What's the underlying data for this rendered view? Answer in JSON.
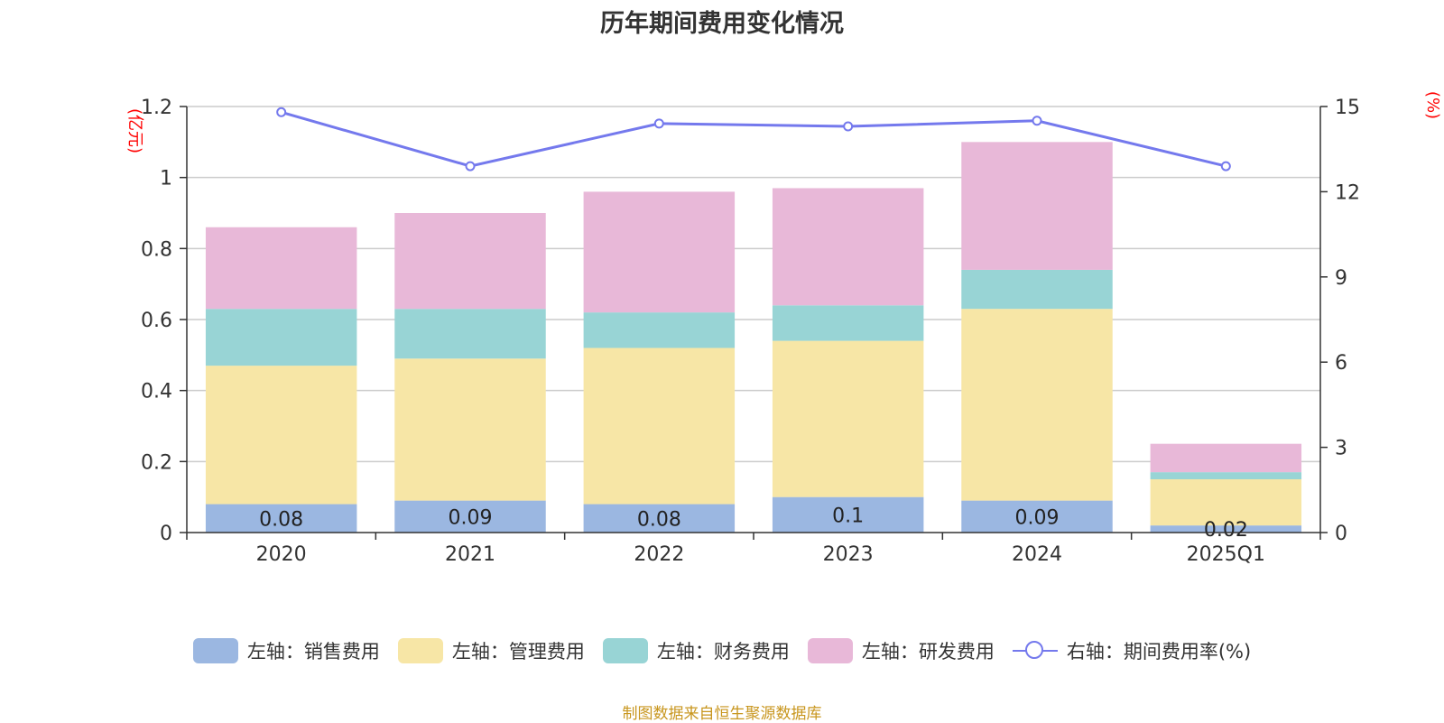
{
  "chart_data": {
    "type": "bar",
    "title": "历年期间费用变化情况",
    "categories": [
      "2020",
      "2021",
      "2022",
      "2023",
      "2024",
      "2025Q1"
    ],
    "series": [
      {
        "name": "左轴：销售费用",
        "axis": "left",
        "color": "#9bb7e1",
        "values": [
          0.08,
          0.09,
          0.08,
          0.1,
          0.09,
          0.02
        ],
        "labels": [
          "0.08",
          "0.09",
          "0.08",
          "0.1",
          "0.09",
          "0.02"
        ]
      },
      {
        "name": "左轴：管理费用",
        "axis": "left",
        "color": "#f7e6a6",
        "values": [
          0.39,
          0.4,
          0.44,
          0.44,
          0.54,
          0.13
        ]
      },
      {
        "name": "左轴：财务费用",
        "axis": "left",
        "color": "#98d4d5",
        "values": [
          0.16,
          0.14,
          0.1,
          0.1,
          0.11,
          0.02
        ]
      },
      {
        "name": "左轴：研发费用",
        "axis": "left",
        "color": "#e8b8d8",
        "values": [
          0.23,
          0.27,
          0.34,
          0.33,
          0.36,
          0.08
        ]
      }
    ],
    "line_series": {
      "name": "右轴：期间费用率(%)",
      "axis": "right",
      "color": "#7479ed",
      "values": [
        14.8,
        12.9,
        14.4,
        14.3,
        14.5,
        12.9
      ]
    },
    "left_axis": {
      "unit": "(亿元)",
      "min": 0,
      "max": 1.2,
      "ticks": [
        "0",
        "0.2",
        "0.4",
        "0.6",
        "0.8",
        "1",
        "1.2"
      ]
    },
    "right_axis": {
      "unit": "(%)",
      "min": 0,
      "max": 15,
      "ticks": [
        "0",
        "3",
        "6",
        "9",
        "12",
        "15"
      ]
    },
    "legend_position": "bottom"
  },
  "source": "制图数据来自恒生聚源数据库"
}
